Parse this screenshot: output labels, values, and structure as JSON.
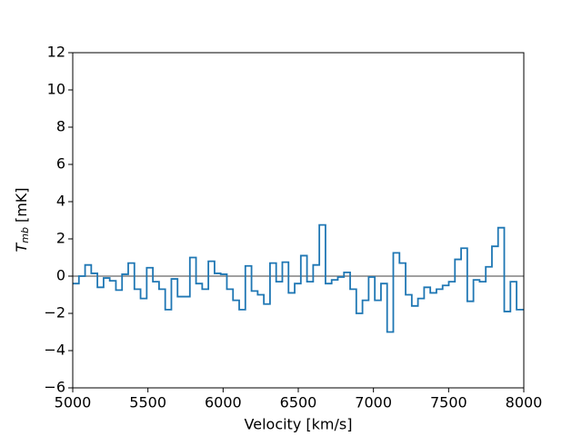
{
  "chart_data": {
    "type": "step",
    "xlabel": "Velocity [km/s]",
    "ylabel": {
      "symbol": "T",
      "subscript": "mb",
      "unit": "[mK]"
    },
    "xlim": [
      5000,
      8000
    ],
    "ylim": [
      -6,
      12
    ],
    "xticks": [
      5000,
      5500,
      6000,
      6500,
      7000,
      7500,
      8000
    ],
    "yticks": [
      {
        "value": -6,
        "label": "−6"
      },
      {
        "value": -4,
        "label": "−4"
      },
      {
        "value": -2,
        "label": "−2"
      },
      0,
      2,
      4,
      6,
      8,
      10,
      12
    ],
    "hline": {
      "value": 0,
      "color": "#808080"
    },
    "series": [
      {
        "color": "#1f77b4",
        "x": [
          5000,
          5041,
          5082,
          5123,
          5164,
          5205,
          5246,
          5287,
          5328,
          5369,
          5410,
          5451,
          5492,
          5533,
          5574,
          5615,
          5656,
          5697,
          5738,
          5779,
          5820,
          5861,
          5902,
          5943,
          5984,
          6025,
          6066,
          6107,
          6148,
          6189,
          6230,
          6271,
          6312,
          6353,
          6394,
          6435,
          6476,
          6517,
          6558,
          6599,
          6640,
          6681,
          6722,
          6763,
          6804,
          6845,
          6886,
          6927,
          6968,
          7009,
          7050,
          7091,
          7132,
          7173,
          7214,
          7255,
          7296,
          7337,
          7378,
          7419,
          7460,
          7501,
          7542,
          7583,
          7624,
          7665,
          7706,
          7747,
          7788,
          7829,
          7870,
          7911,
          7952
        ],
        "values": [
          -0.4,
          0.0,
          0.6,
          0.15,
          -0.6,
          -0.1,
          -0.25,
          -0.75,
          0.1,
          0.7,
          -0.7,
          -1.2,
          0.45,
          -0.3,
          -0.7,
          -1.8,
          -0.15,
          -1.1,
          -1.1,
          1.0,
          -0.4,
          -0.7,
          0.8,
          0.15,
          0.1,
          -0.7,
          -1.3,
          -1.8,
          0.55,
          -0.8,
          -1.0,
          -1.5,
          0.7,
          -0.3,
          0.75,
          -0.9,
          -0.4,
          1.1,
          -0.3,
          0.6,
          2.75,
          -0.4,
          -0.2,
          -0.05,
          0.2,
          -0.7,
          -2.0,
          -1.3,
          -0.05,
          -1.3,
          -0.4,
          -3.0,
          1.25,
          0.7,
          -1.0,
          -1.6,
          -1.2,
          -0.6,
          -0.9,
          -0.7,
          -0.5,
          -0.3,
          0.9,
          1.5,
          -1.35,
          -0.2,
          -0.3,
          0.5,
          1.6,
          2.6,
          -1.9,
          -0.3,
          -1.8
        ]
      }
    ]
  }
}
